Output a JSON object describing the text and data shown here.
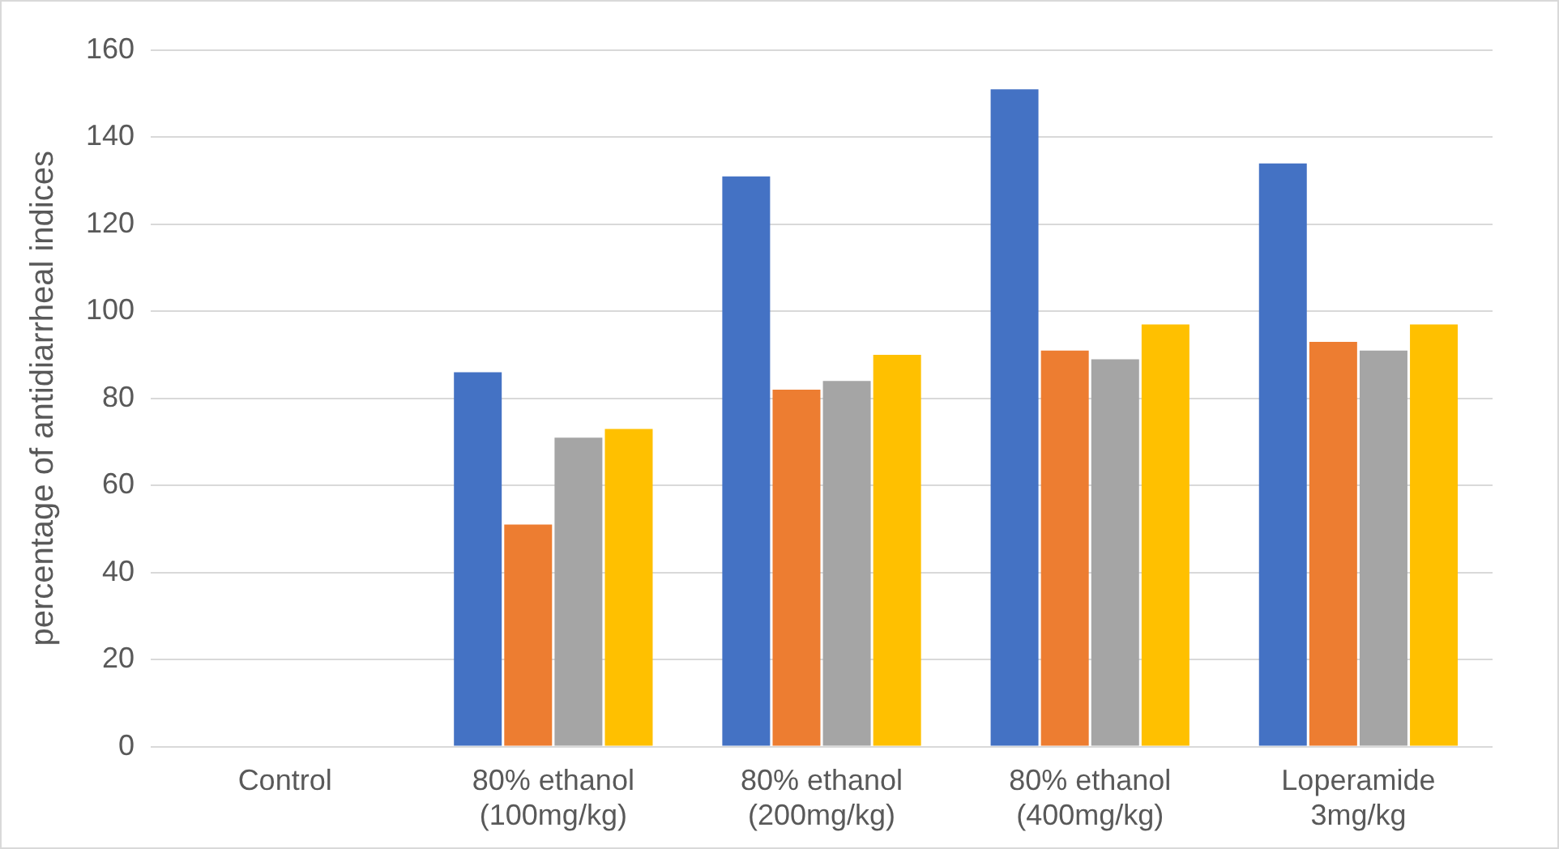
{
  "chart_data": {
    "type": "bar",
    "ylabel": "percentage of antidiarrheal indices",
    "categories": [
      "Control",
      "80% ethanol (100mg/kg)",
      "80% ethanol (200mg/kg)",
      "80% ethanol (400mg/kg)",
      "Loperamide 3mg/kg"
    ],
    "series": [
      {
        "color": "#4472c4",
        "values": [
          0,
          86,
          131,
          151,
          134
        ]
      },
      {
        "color": "#ed7d31",
        "values": [
          0,
          51,
          82,
          91,
          93
        ]
      },
      {
        "color": "#a5a5a5",
        "values": [
          0,
          71,
          84,
          89,
          91
        ]
      },
      {
        "color": "#ffc000",
        "values": [
          0,
          73,
          90,
          97,
          97
        ]
      }
    ],
    "ylim": [
      0,
      160
    ],
    "yticks": [
      0,
      20,
      40,
      60,
      80,
      100,
      120,
      140,
      160
    ],
    "grid": "y",
    "legend": false
  }
}
